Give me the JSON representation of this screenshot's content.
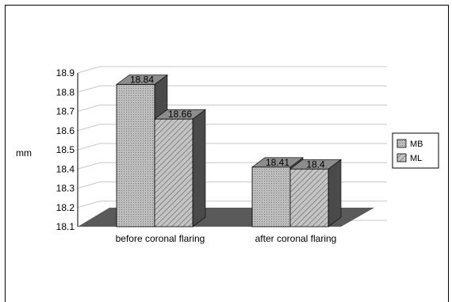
{
  "chart_data": {
    "type": "bar",
    "ylabel": "mm",
    "ylim": [
      18.1,
      18.9
    ],
    "yticks": [
      "18.9",
      "18.8",
      "18.7",
      "18.6",
      "18.5",
      "18.4",
      "18.3",
      "18.2",
      "18.1"
    ],
    "categories": [
      "before coronal flaring",
      "after coronal flaring"
    ],
    "series": [
      {
        "name": "MB",
        "values": [
          18.84,
          18.41
        ],
        "labels": [
          "18.84",
          "18.41"
        ]
      },
      {
        "name": "ML",
        "values": [
          18.66,
          18.4
        ],
        "labels": [
          "18.66",
          "18.4"
        ]
      }
    ],
    "grid": true,
    "legend": "right",
    "style": "3d"
  },
  "colors": {
    "border": "#000000",
    "bar_face": "#b4b4b4",
    "bar_top": "#8c8c8c",
    "bar_side": "#4a4a4a",
    "floor": "#5a5a5a",
    "grid": "#c8c8c8"
  }
}
